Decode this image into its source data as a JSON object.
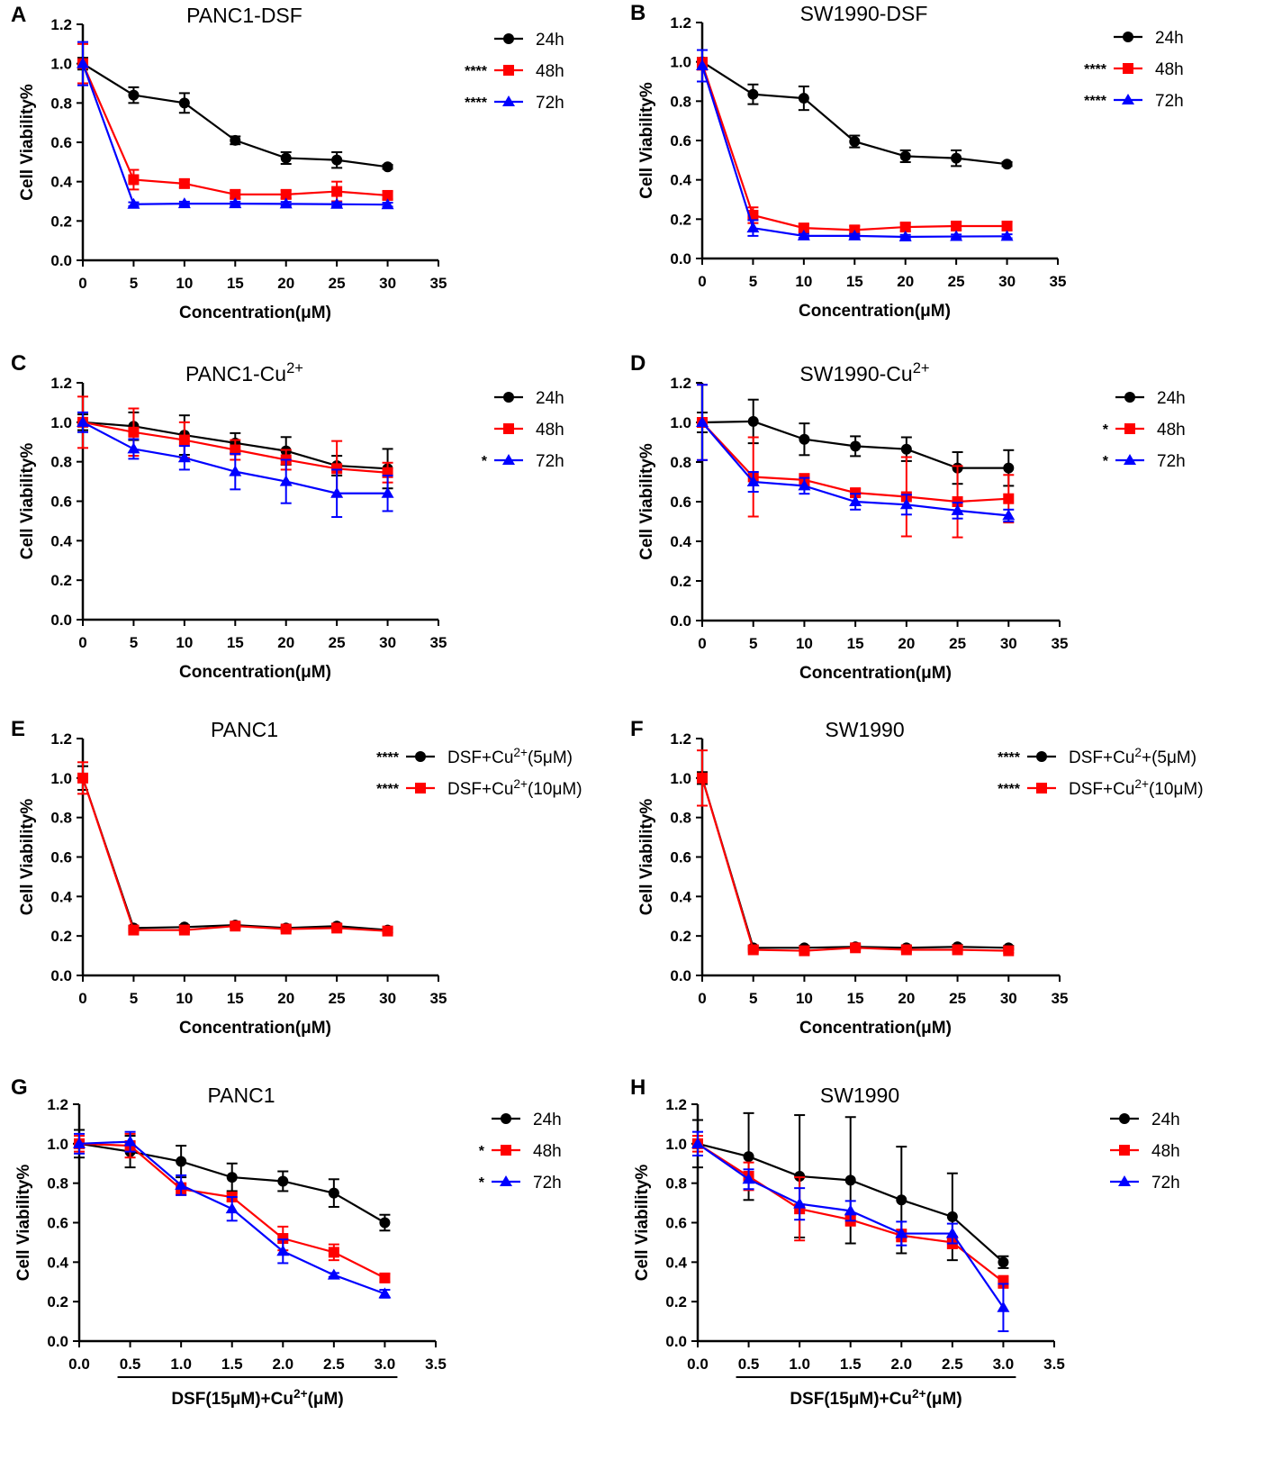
{
  "chart_data": [
    {
      "type": "line",
      "panel": "A",
      "title": "PANC1-DSF",
      "xlabel": "Concentration(μM)",
      "ylabel": "Cell Viability%",
      "xlim": [
        0,
        35
      ],
      "ylim": [
        0,
        1.2
      ],
      "xticks": [
        "0",
        "5",
        "10",
        "15",
        "20",
        "25",
        "30",
        "35"
      ],
      "yticks": [
        "0.0",
        "0.2",
        "0.4",
        "0.6",
        "0.8",
        "1.0",
        "1.2"
      ],
      "x": [
        0,
        5,
        10,
        15,
        20,
        25,
        30
      ],
      "series": [
        {
          "name": "24h",
          "sig": "",
          "color": "#000000",
          "marker": "circle",
          "values": [
            1.0,
            0.84,
            0.8,
            0.61,
            0.52,
            0.51,
            0.475
          ],
          "errors": [
            0.03,
            0.04,
            0.05,
            0.02,
            0.03,
            0.04,
            0.01
          ]
        },
        {
          "name": "48h",
          "sig": "****",
          "color": "#ff0000",
          "marker": "square",
          "values": [
            1.0,
            0.41,
            0.39,
            0.335,
            0.335,
            0.35,
            0.33
          ],
          "errors": [
            0.1,
            0.05,
            0.02,
            0.02,
            0.02,
            0.05,
            0.02
          ]
        },
        {
          "name": "72h",
          "sig": "****",
          "color": "#0000ff",
          "marker": "triangle",
          "values": [
            1.0,
            0.285,
            0.288,
            0.288,
            0.287,
            0.285,
            0.283
          ],
          "errors": [
            0.11,
            0.01,
            0.01,
            0.01,
            0.01,
            0.01,
            0.01
          ]
        }
      ]
    },
    {
      "type": "line",
      "panel": "B",
      "title": "SW1990-DSF",
      "xlabel": "Concentration(μM)",
      "ylabel": "Cell Viability%",
      "xlim": [
        0,
        35
      ],
      "ylim": [
        0,
        1.2
      ],
      "xticks": [
        "0",
        "5",
        "10",
        "15",
        "20",
        "25",
        "30",
        "35"
      ],
      "yticks": [
        "0.0",
        "0.2",
        "0.4",
        "0.6",
        "0.8",
        "1.0",
        "1.2"
      ],
      "x": [
        0,
        5,
        10,
        15,
        20,
        25,
        30
      ],
      "series": [
        {
          "name": "24h",
          "sig": "",
          "color": "#000000",
          "marker": "circle",
          "values": [
            1.0,
            0.835,
            0.815,
            0.595,
            0.52,
            0.51,
            0.48
          ],
          "errors": [
            0.02,
            0.05,
            0.06,
            0.03,
            0.03,
            0.04,
            0.01
          ]
        },
        {
          "name": "48h",
          "sig": "****",
          "color": "#ff0000",
          "marker": "square",
          "values": [
            0.99,
            0.22,
            0.155,
            0.145,
            0.16,
            0.165,
            0.165
          ],
          "errors": [
            0.03,
            0.04,
            0.02,
            0.02,
            0.02,
            0.02,
            0.02
          ]
        },
        {
          "name": "72h",
          "sig": "****",
          "color": "#0000ff",
          "marker": "triangle",
          "values": [
            0.98,
            0.155,
            0.115,
            0.115,
            0.11,
            0.112,
            0.113
          ],
          "errors": [
            0.08,
            0.04,
            0.01,
            0.01,
            0.01,
            0.01,
            0.01
          ]
        }
      ]
    },
    {
      "type": "line",
      "panel": "C",
      "title": "PANC1-Cu",
      "title_sup": "2+",
      "xlabel": "Concentration(μM)",
      "ylabel": "Cell Viability%",
      "xlim": [
        0,
        35
      ],
      "ylim": [
        0,
        1.2
      ],
      "xticks": [
        "0",
        "5",
        "10",
        "15",
        "20",
        "25",
        "30",
        "35"
      ],
      "yticks": [
        "0.0",
        "0.2",
        "0.4",
        "0.6",
        "0.8",
        "1.0",
        "1.2"
      ],
      "x": [
        0,
        5,
        10,
        15,
        20,
        25,
        30
      ],
      "series": [
        {
          "name": "24h",
          "sig": "",
          "color": "#000000",
          "marker": "circle",
          "values": [
            1.0,
            0.98,
            0.935,
            0.895,
            0.855,
            0.78,
            0.765
          ],
          "errors": [
            0.04,
            0.07,
            0.1,
            0.05,
            0.07,
            0.05,
            0.1
          ]
        },
        {
          "name": "48h",
          "sig": "",
          "color": "#ff0000",
          "marker": "square",
          "values": [
            1.0,
            0.95,
            0.91,
            0.86,
            0.81,
            0.765,
            0.745
          ],
          "errors": [
            0.13,
            0.12,
            0.09,
            0.05,
            0.05,
            0.14,
            0.05
          ]
        },
        {
          "name": "72h",
          "sig": "*",
          "color": "#0000ff",
          "marker": "triangle",
          "values": [
            1.0,
            0.865,
            0.82,
            0.75,
            0.7,
            0.64,
            0.64
          ],
          "errors": [
            0.05,
            0.05,
            0.06,
            0.09,
            0.11,
            0.12,
            0.09
          ]
        }
      ]
    },
    {
      "type": "line",
      "panel": "D",
      "title": "SW1990-Cu",
      "title_sup": "2+",
      "xlabel": "Concentration(μM)",
      "ylabel": "Cell Viability%",
      "xlim": [
        0,
        35
      ],
      "ylim": [
        0,
        1.2
      ],
      "xticks": [
        "0",
        "5",
        "10",
        "15",
        "20",
        "25",
        "30",
        "35"
      ],
      "yticks": [
        "0.0",
        "0.2",
        "0.4",
        "0.6",
        "0.8",
        "1.0",
        "1.2"
      ],
      "x": [
        0,
        5,
        10,
        15,
        20,
        25,
        30
      ],
      "series": [
        {
          "name": "24h",
          "sig": "",
          "color": "#000000",
          "marker": "circle",
          "values": [
            1.0,
            1.005,
            0.915,
            0.88,
            0.865,
            0.77,
            0.77
          ],
          "errors": [
            0.05,
            0.11,
            0.08,
            0.05,
            0.06,
            0.08,
            0.09
          ]
        },
        {
          "name": "48h",
          "sig": "*",
          "color": "#ff0000",
          "marker": "square",
          "values": [
            1.0,
            0.725,
            0.71,
            0.645,
            0.625,
            0.6,
            0.615
          ],
          "errors": [
            0.19,
            0.2,
            0.03,
            0.02,
            0.2,
            0.18,
            0.12
          ]
        },
        {
          "name": "72h",
          "sig": "*",
          "color": "#0000ff",
          "marker": "triangle",
          "values": [
            1.0,
            0.7,
            0.68,
            0.6,
            0.585,
            0.555,
            0.53
          ],
          "errors": [
            0.19,
            0.05,
            0.04,
            0.04,
            0.05,
            0.04,
            0.03
          ]
        }
      ]
    },
    {
      "type": "line",
      "panel": "E",
      "title": "PANC1",
      "xlabel": "Concentration(μM)",
      "ylabel": "Cell Viability%",
      "xlim": [
        0,
        35
      ],
      "ylim": [
        0,
        1.2
      ],
      "xticks": [
        "0",
        "5",
        "10",
        "15",
        "20",
        "25",
        "30",
        "35"
      ],
      "yticks": [
        "0.0",
        "0.2",
        "0.4",
        "0.6",
        "0.8",
        "1.0",
        "1.2"
      ],
      "x": [
        0,
        5,
        10,
        15,
        20,
        25,
        30
      ],
      "series": [
        {
          "name": "DSF+Cu",
          "name_sup": "2+",
          "name_suffix": "(5μM)",
          "sig": "****",
          "color": "#000000",
          "marker": "circle",
          "values": [
            1.0,
            0.24,
            0.245,
            0.255,
            0.24,
            0.25,
            0.23
          ],
          "errors": [
            0.06,
            0.01,
            0.01,
            0.01,
            0.01,
            0.01,
            0.01
          ]
        },
        {
          "name": "DSF+Cu",
          "name_sup": "2+",
          "name_suffix": "(10μM)",
          "sig": "****",
          "color": "#ff0000",
          "marker": "square",
          "values": [
            1.0,
            0.23,
            0.23,
            0.25,
            0.235,
            0.24,
            0.225
          ],
          "errors": [
            0.08,
            0.01,
            0.01,
            0.01,
            0.01,
            0.01,
            0.01
          ]
        }
      ]
    },
    {
      "type": "line",
      "panel": "F",
      "title": "SW1990",
      "xlabel": "Concentration(μM)",
      "ylabel": "Cell Viability%",
      "xlim": [
        0,
        35
      ],
      "ylim": [
        0,
        1.2
      ],
      "xticks": [
        "0",
        "5",
        "10",
        "15",
        "20",
        "25",
        "30",
        "35"
      ],
      "yticks": [
        "0.0",
        "0.2",
        "0.4",
        "0.6",
        "0.8",
        "1.0",
        "1.2"
      ],
      "x": [
        0,
        5,
        10,
        15,
        20,
        25,
        30
      ],
      "series": [
        {
          "name": "DSF+Cu",
          "name_sup": "2",
          "name_suffix": "+(5μM)",
          "sig": "****",
          "color": "#000000",
          "marker": "circle",
          "values": [
            1.0,
            0.14,
            0.14,
            0.145,
            0.14,
            0.145,
            0.14
          ],
          "errors": [
            0.03,
            0.01,
            0.01,
            0.01,
            0.01,
            0.01,
            0.01
          ]
        },
        {
          "name": "DSF+Cu",
          "name_sup": "2+",
          "name_suffix": "(10μM)",
          "sig": "****",
          "color": "#ff0000",
          "marker": "square",
          "values": [
            1.0,
            0.13,
            0.125,
            0.14,
            0.13,
            0.13,
            0.125
          ],
          "errors": [
            0.14,
            0.01,
            0.01,
            0.01,
            0.01,
            0.01,
            0.01
          ]
        }
      ]
    },
    {
      "type": "line",
      "panel": "G",
      "title": "PANC1",
      "xlabel": "DSF(15μM)+Cu",
      "xlabel_sup": "2+",
      "xlabel_suffix": "(μM)",
      "ylabel": "Cell Viability%",
      "xlim": [
        0,
        3.5
      ],
      "ylim": [
        0,
        1.2
      ],
      "xticks": [
        "0.0",
        "0.5",
        "1.0",
        "1.5",
        "2.0",
        "2.5",
        "3.0",
        "3.5"
      ],
      "yticks": [
        "0.0",
        "0.2",
        "0.4",
        "0.6",
        "0.8",
        "1.0",
        "1.2"
      ],
      "x": [
        0,
        0.5,
        1.0,
        1.5,
        2.0,
        2.5,
        3.0
      ],
      "series": [
        {
          "name": "24h",
          "sig": "",
          "color": "#000000",
          "marker": "circle",
          "values": [
            1.0,
            0.96,
            0.91,
            0.83,
            0.81,
            0.75,
            0.6
          ],
          "errors": [
            0.07,
            0.08,
            0.08,
            0.07,
            0.05,
            0.07,
            0.04
          ]
        },
        {
          "name": "48h",
          "sig": "*",
          "color": "#ff0000",
          "marker": "square",
          "values": [
            1.0,
            0.99,
            0.77,
            0.73,
            0.52,
            0.45,
            0.32
          ],
          "errors": [
            0.04,
            0.06,
            0.03,
            0.02,
            0.06,
            0.04,
            0.02
          ]
        },
        {
          "name": "72h",
          "sig": "*",
          "color": "#0000ff",
          "marker": "triangle",
          "values": [
            1.0,
            1.01,
            0.79,
            0.67,
            0.455,
            0.335,
            0.24
          ],
          "errors": [
            0.05,
            0.05,
            0.05,
            0.06,
            0.06,
            0.01,
            0.02
          ]
        }
      ]
    },
    {
      "type": "line",
      "panel": "H",
      "title": "SW1990",
      "xlabel": "DSF(15μM)+Cu",
      "xlabel_sup": "2+",
      "xlabel_suffix": "(μM)",
      "ylabel": "Cell Viability%",
      "xlim": [
        0,
        3.5
      ],
      "ylim": [
        0,
        1.2
      ],
      "xticks": [
        "0.0",
        "0.5",
        "1.0",
        "1.5",
        "2.0",
        "2.5",
        "3.0",
        "3.5"
      ],
      "yticks": [
        "0.0",
        "0.2",
        "0.4",
        "0.6",
        "0.8",
        "1.0",
        "1.2"
      ],
      "x": [
        0,
        0.5,
        1.0,
        1.5,
        2.0,
        2.5,
        3.0
      ],
      "series": [
        {
          "name": "24h",
          "sig": "",
          "color": "#000000",
          "marker": "circle",
          "values": [
            1.0,
            0.935,
            0.835,
            0.815,
            0.715,
            0.63,
            0.4
          ],
          "errors": [
            0.12,
            0.22,
            0.31,
            0.32,
            0.27,
            0.22,
            0.03
          ]
        },
        {
          "name": "48h",
          "sig": "",
          "color": "#ff0000",
          "marker": "square",
          "values": [
            1.0,
            0.835,
            0.67,
            0.615,
            0.535,
            0.5,
            0.3
          ],
          "errors": [
            0.04,
            0.07,
            0.16,
            0.03,
            0.03,
            0.03,
            0.03
          ]
        },
        {
          "name": "72h",
          "sig": "",
          "color": "#0000ff",
          "marker": "triangle",
          "values": [
            1.0,
            0.82,
            0.695,
            0.66,
            0.545,
            0.545,
            0.17
          ],
          "errors": [
            0.06,
            0.05,
            0.08,
            0.05,
            0.06,
            0.05,
            0.12
          ]
        }
      ]
    }
  ]
}
